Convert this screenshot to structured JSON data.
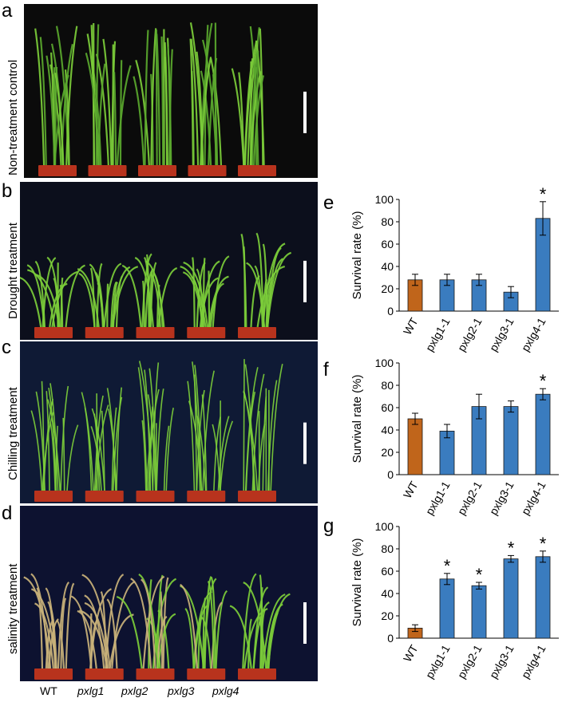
{
  "colors": {
    "wt_bar": "#c0651b",
    "mutant_bar": "#3a7cbf",
    "bar_outline": "#1a1a1a",
    "photo_bg_a": "#0b0b0b",
    "photo_bg_b": "#0c0f1c",
    "photo_bg_c": "#0f1a35",
    "photo_bg_d": "#0d1230",
    "pot": "#b8331d",
    "leaf": "#5aa82e",
    "leaf_bright": "#7ccd3a",
    "leaf_dry": "#c9b27a",
    "scale_bar": "#ffffff"
  },
  "panels": {
    "a": {
      "letter": "a",
      "label": "Non-treatment control"
    },
    "b": {
      "letter": "b",
      "label": "Drought treatment"
    },
    "c": {
      "letter": "c",
      "label": "Chilling treatment"
    },
    "d": {
      "letter": "d",
      "label": "salinity treatment"
    }
  },
  "genotype_labels": [
    "WT",
    "pxlg1",
    "pxlg2",
    "pxlg3",
    "pxlg4"
  ],
  "chart_data": [
    {
      "panel": "e",
      "type": "bar",
      "ylabel": "Survival rate (%)",
      "ylim": [
        0,
        100
      ],
      "yticks": [
        0,
        20,
        40,
        60,
        80,
        100
      ],
      "categories": [
        "WT",
        "pxlg1-1",
        "pxlg2-1",
        "pxlg3-1",
        "pxlg4-1"
      ],
      "values": [
        28,
        28,
        28,
        17,
        83
      ],
      "errors": [
        5,
        5,
        5,
        5,
        15
      ],
      "significance": [
        "",
        "",
        "",
        "",
        "*"
      ]
    },
    {
      "panel": "f",
      "type": "bar",
      "ylabel": "Survival rate (%)",
      "ylim": [
        0,
        100
      ],
      "yticks": [
        0,
        20,
        40,
        60,
        80,
        100
      ],
      "categories": [
        "WT",
        "pxlg1-1",
        "pxlg2-1",
        "pxlg3-1",
        "pxlg4-1"
      ],
      "values": [
        50,
        39,
        61,
        61,
        72
      ],
      "errors": [
        5,
        6,
        11,
        5,
        5
      ],
      "significance": [
        "",
        "",
        "",
        "",
        "*"
      ]
    },
    {
      "panel": "g",
      "type": "bar",
      "ylabel": "Survival rate (%)",
      "ylim": [
        0,
        100
      ],
      "yticks": [
        0,
        20,
        40,
        60,
        80,
        100
      ],
      "categories": [
        "WT",
        "pxlg1-1",
        "pxlg2-1",
        "pxlg3-1",
        "pxlg4-1"
      ],
      "values": [
        9,
        53,
        47,
        71,
        73
      ],
      "errors": [
        3,
        5,
        3,
        3,
        5
      ],
      "significance": [
        "",
        "*",
        "*",
        "*",
        "*"
      ]
    }
  ]
}
